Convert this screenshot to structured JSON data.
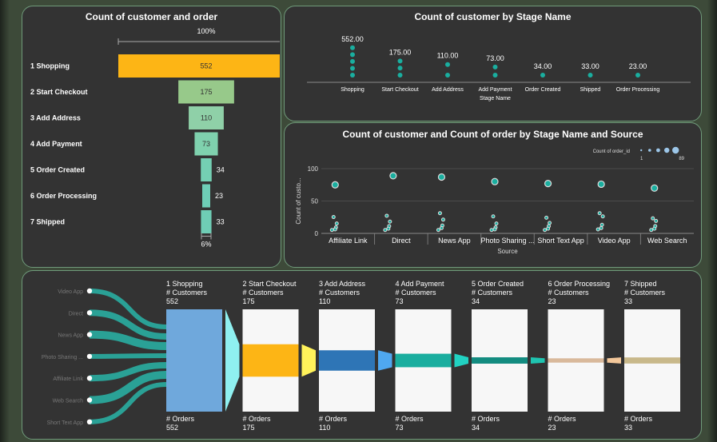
{
  "funnel": {
    "title": "Count of customer and order",
    "top_pct": "100%",
    "bottom_pct": "6%",
    "stages": [
      {
        "label": "1 Shopping",
        "value": 552,
        "color": "#FDB515"
      },
      {
        "label": "2 Start Checkout",
        "value": 175,
        "color": "#97C98A"
      },
      {
        "label": "3 Add Address",
        "value": 110,
        "color": "#8FD0A8"
      },
      {
        "label": "4 Add Payment",
        "value": 73,
        "color": "#7FD1AE"
      },
      {
        "label": "5 Order Created",
        "value": 34,
        "color": "#74CFB3"
      },
      {
        "label": "6 Order Processing",
        "value": 23,
        "color": "#6ECDB6"
      },
      {
        "label": "7 Shipped",
        "value": 33,
        "color": "#6FCDB5"
      }
    ]
  },
  "chart_data": [
    {
      "type": "scatter",
      "title": "Count of customer by Stage Name",
      "xlabel": "Stage Name",
      "ylabel": "",
      "categories": [
        "Shopping",
        "Start Checkout",
        "Add Address",
        "Add Payment",
        "Order Created",
        "Shipped",
        "Order Processing"
      ],
      "values": [
        552.0,
        175.0,
        110.0,
        73.0,
        34.0,
        33.0,
        23.0
      ],
      "value_labels": [
        "552.00",
        "175.00",
        "110.00",
        "73.00",
        "34.00",
        "33.00",
        "23.00"
      ],
      "color": "#1AAE9F"
    },
    {
      "type": "scatter",
      "title": "Count of customer and Count of order by Stage Name and Source",
      "xlabel": "Source",
      "ylabel": "Count of custo...",
      "ylim": [
        0,
        100
      ],
      "yticks": [
        "0",
        "50",
        "100"
      ],
      "size_legend": {
        "title": "Count of order_id",
        "min": "1",
        "max": "89"
      },
      "categories": [
        "Affiliate Link",
        "Direct",
        "News App",
        "Photo Sharing ...",
        "Short Text App",
        "Video App",
        "Web Search"
      ],
      "top_values": [
        75,
        89,
        87,
        80,
        77,
        76,
        70
      ],
      "small_values": [
        [
          24,
          14,
          8,
          5,
          4
        ],
        [
          26,
          17,
          10,
          6,
          4
        ],
        [
          30,
          20,
          11,
          7,
          4
        ],
        [
          25,
          14,
          8,
          5,
          4
        ],
        [
          23,
          15,
          10,
          6,
          4
        ],
        [
          30,
          25,
          12,
          7,
          5
        ],
        [
          22,
          18,
          10,
          6,
          4
        ]
      ],
      "grid": true
    },
    {
      "type": "sankey",
      "sources": [
        "Video App",
        "Direct",
        "News App",
        "Photo Sharing ...",
        "Affiliate Link",
        "Web Search",
        "Short Text App"
      ],
      "stages": [
        {
          "name": "1 Shopping",
          "cust_label": "# Customers",
          "customers": "552",
          "orders_label": "# Orders",
          "orders": "552",
          "fill": 1.0,
          "color": "#6FA8DC"
        },
        {
          "name": "2 Start Checkout",
          "cust_label": "# Customers",
          "customers": "175",
          "orders_label": "# Orders",
          "orders": "175",
          "fill": 0.317,
          "color": "#FDB515"
        },
        {
          "name": "3 Add Address",
          "cust_label": "# Customers",
          "customers": "110",
          "orders_label": "# Orders",
          "orders": "110",
          "fill": 0.199,
          "color": "#2E75B6"
        },
        {
          "name": "4 Add Payment",
          "cust_label": "# Customers",
          "customers": "73",
          "orders_label": "# Orders",
          "orders": "73",
          "fill": 0.132,
          "color": "#1AAE9F"
        },
        {
          "name": "5 Order Created",
          "cust_label": "# Customers",
          "customers": "34",
          "orders_label": "# Orders",
          "orders": "34",
          "fill": 0.062,
          "color": "#138C80"
        },
        {
          "name": "6 Order Processing",
          "cust_label": "# Customers",
          "customers": "23",
          "orders_label": "# Orders",
          "orders": "23",
          "fill": 0.042,
          "color": "#D9B99B"
        },
        {
          "name": "7 Shipped",
          "cust_label": "# Customers",
          "customers": "33",
          "orders_label": "# Orders",
          "orders": "33",
          "fill": 0.06,
          "color": "#C8B88A"
        }
      ],
      "connector_colors": [
        "#8FF0F0",
        "#FFF25A",
        "#4FA8F0",
        "#21D2C2",
        "#1FC4B0",
        "#F3C79A"
      ]
    }
  ]
}
